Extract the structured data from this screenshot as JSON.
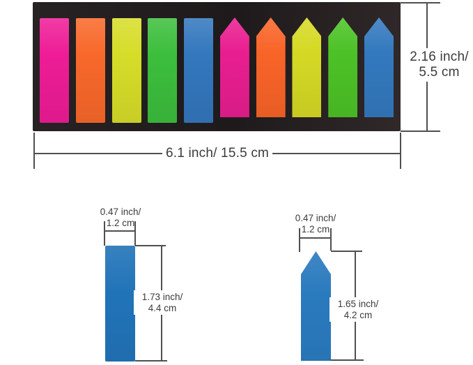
{
  "figure_title": "page-marker-tabs-dimensions",
  "colors": {
    "background": "#ffffff",
    "board": "#201c1d",
    "line": "#4f4f4f",
    "text": "#3b3b3b",
    "figure_rect_blue": "#2173b8",
    "figure_arrow_blue": "#2a7abe"
  },
  "board": {
    "tabs": [
      {
        "name": "pink",
        "shape": "rect",
        "color": "#ee1c96"
      },
      {
        "name": "orange",
        "shape": "rect",
        "color": "#f8682a"
      },
      {
        "name": "yellow",
        "shape": "rect",
        "color": "#d6dd28"
      },
      {
        "name": "green",
        "shape": "rect",
        "color": "#3cbe3c"
      },
      {
        "name": "blue",
        "shape": "rect",
        "color": "#3377bd"
      },
      {
        "name": "pink",
        "shape": "arrow",
        "color": "#e81e90"
      },
      {
        "name": "orange",
        "shape": "arrow",
        "color": "#f96428"
      },
      {
        "name": "yellow",
        "shape": "arrow",
        "color": "#d5d924"
      },
      {
        "name": "green",
        "shape": "arrow",
        "color": "#4cc226"
      },
      {
        "name": "blue",
        "shape": "arrow",
        "color": "#3379be"
      }
    ],
    "height_dim": {
      "line1": "2.16 inch/",
      "line2": "5.5 cm"
    },
    "width_dim": {
      "label": "6.1 inch/ 15.5 cm"
    }
  },
  "rect_tab_figure": {
    "width_dim": {
      "line1": "0.47 inch/",
      "line2": "1.2 cm"
    },
    "height_dim": {
      "line1": "1.73 inch/",
      "line2": "4.4 cm"
    }
  },
  "arrow_tab_figure": {
    "width_dim": {
      "line1": "0.47 inch/",
      "line2": "1.2 cm"
    },
    "height_dim": {
      "line1": "1.65 inch/",
      "line2": "4.2 cm"
    }
  }
}
